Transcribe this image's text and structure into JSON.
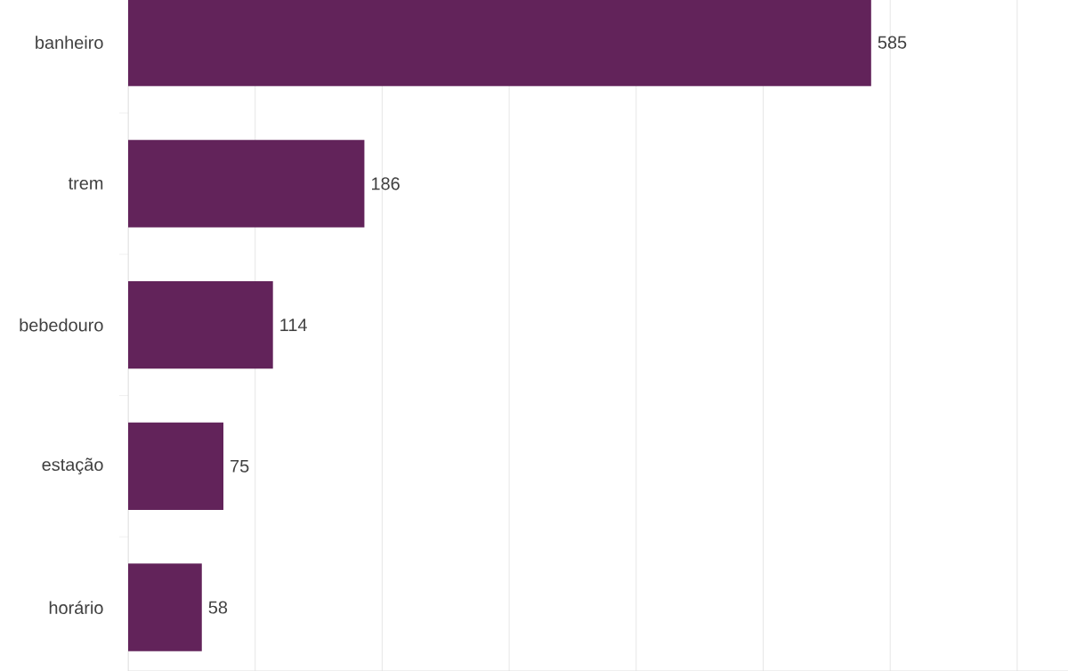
{
  "chart_data": {
    "type": "bar",
    "orientation": "horizontal",
    "categories": [
      "banheiro",
      "trem",
      "bebedouro",
      "estação",
      "horário"
    ],
    "values": [
      585,
      186,
      114,
      75,
      58
    ],
    "color": "#62235a",
    "xlim": [
      0,
      740
    ],
    "xticks": [
      {
        "value": 0,
        "label": null
      },
      {
        "value": 100,
        "label": null
      },
      {
        "value": 200,
        "label": null
      },
      {
        "value": 300,
        "label": null
      },
      {
        "value": 400,
        "label": null
      },
      {
        "value": 500,
        "label": null
      },
      {
        "value": 600,
        "label": null
      },
      {
        "value": 700,
        "label": null
      }
    ],
    "grid": "x",
    "tick_labels": "y",
    "data_labels": true
  }
}
